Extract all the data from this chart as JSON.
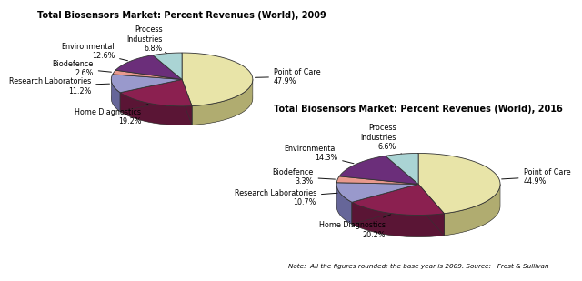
{
  "chart1": {
    "title": "Total Biosensors Market: Percent Revenues (World), 2009",
    "labels": [
      "Point of Care",
      "Home Diagnostics",
      "Research Laboratories",
      "Biodefence",
      "Environmental",
      "Process\nIndustries"
    ],
    "pct_labels": [
      "47.9%",
      "19.2%",
      "11.2%",
      "2.6%",
      "12.6%",
      "6.8%"
    ],
    "values": [
      47.9,
      19.2,
      11.2,
      2.6,
      12.6,
      6.8
    ],
    "colors": [
      "#e8e4a8",
      "#8b2050",
      "#9999cc",
      "#e8998d",
      "#6b2e7a",
      "#aad4d4"
    ],
    "side_colors": [
      "#b0ac70",
      "#5a1535",
      "#666699",
      "#b06060",
      "#3d1a45",
      "#70a0a0"
    ],
    "bottom_color": "#7a7860",
    "start_angle": 90
  },
  "chart2": {
    "title": "Total Biosensors Market: Percent Revenues (World), 2016",
    "labels": [
      "Point of Care",
      "Home Diagnostics",
      "Research Laboratories",
      "Biodefence",
      "Environmental",
      "Process\nIndustries"
    ],
    "pct_labels": [
      "44.9%",
      "20.2%",
      "10.7%",
      "3.3%",
      "14.3%",
      "6.6%"
    ],
    "values": [
      44.9,
      20.2,
      10.7,
      3.3,
      14.3,
      6.6
    ],
    "colors": [
      "#e8e4a8",
      "#8b2050",
      "#9999cc",
      "#e8998d",
      "#6b2e7a",
      "#aad4d4"
    ],
    "side_colors": [
      "#b0ac70",
      "#5a1535",
      "#666699",
      "#b06060",
      "#3d1a45",
      "#70a0a0"
    ],
    "bottom_color": "#7a7860",
    "start_angle": 90
  },
  "note": "Note:  All the figures rounded; the base year is 2009. Source:   Frost & Sullivan",
  "bg_color": "#ffffff",
  "box_edge_color": "#888888"
}
